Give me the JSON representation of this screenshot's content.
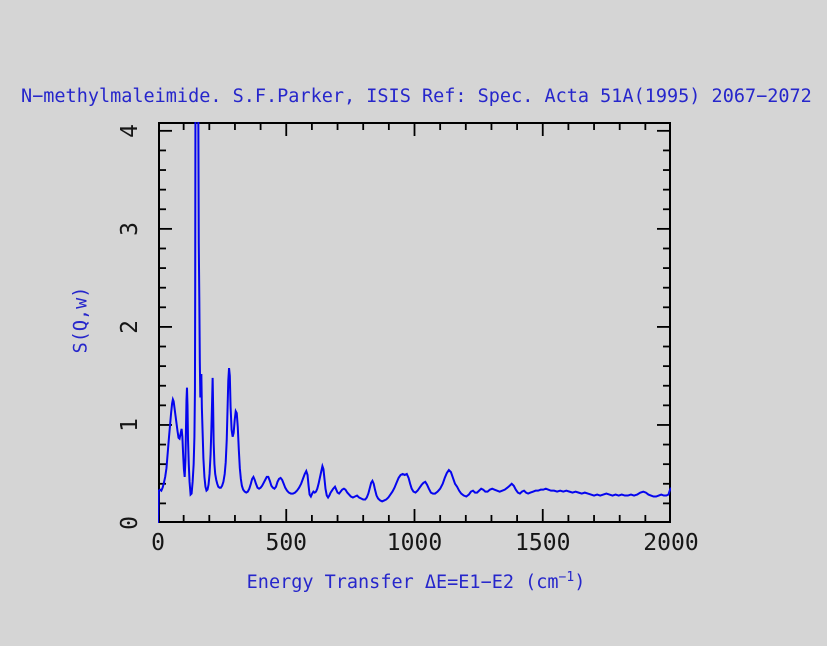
{
  "chart_data": {
    "type": "line",
    "title": "N−methylmaleimide. S.F.Parker, ISIS Ref: Spec. Acta 51A(1995) 2067−2072",
    "xlabel": "Energy Transfer ΔE=E1−E2 (cm⁻¹)",
    "xlabel_pre": "Energy Transfer ΔE=E1−E2 (cm",
    "xlabel_sup": "−1",
    "xlabel_post": ")",
    "ylabel": "S(Q,w)",
    "xlim": [
      0,
      2000
    ],
    "ylim": [
      0,
      4.09
    ],
    "grid": false,
    "legend": "none",
    "x_ticks": {
      "major": [
        0,
        500,
        1000,
        1500,
        2000
      ],
      "labels": [
        "0",
        "500",
        "1000",
        "1500",
        "2000"
      ],
      "minor_step": 100
    },
    "y_ticks": {
      "major": [
        0,
        1,
        2,
        3,
        4
      ],
      "labels": [
        "0",
        "1",
        "2",
        "3",
        "4"
      ],
      "minor_step": 0.2
    },
    "colors": {
      "background": "#d5d5d5",
      "axis": "#000000",
      "curve": "#0505ee",
      "label_text": "#2626cb",
      "tick_text": "#161616"
    },
    "series": [
      {
        "name": "S(Q,w)",
        "points": [
          [
            0,
            0
          ],
          [
            3,
            0.33
          ],
          [
            8,
            0.34
          ],
          [
            13,
            0.33
          ],
          [
            18,
            0.36
          ],
          [
            23,
            0.41
          ],
          [
            28,
            0.47
          ],
          [
            33,
            0.56
          ],
          [
            38,
            0.72
          ],
          [
            43,
            0.88
          ],
          [
            47,
            1.0
          ],
          [
            51,
            1.12
          ],
          [
            55,
            1.22
          ],
          [
            58,
            1.26
          ],
          [
            61,
            1.24
          ],
          [
            64,
            1.18
          ],
          [
            68,
            1.1
          ],
          [
            72,
            1.02
          ],
          [
            76,
            0.94
          ],
          [
            80,
            0.87
          ],
          [
            84,
            0.86
          ],
          [
            88,
            0.91
          ],
          [
            92,
            0.96
          ],
          [
            95,
            0.88
          ],
          [
            98,
            0.7
          ],
          [
            101,
            0.55
          ],
          [
            104,
            0.47
          ],
          [
            107,
            0.65
          ],
          [
            109,
            0.95
          ],
          [
            111,
            1.25
          ],
          [
            113,
            1.38
          ],
          [
            115,
            1.2
          ],
          [
            117,
            0.85
          ],
          [
            120,
            0.6
          ],
          [
            123,
            0.42
          ],
          [
            127,
            0.29
          ],
          [
            131,
            0.3
          ],
          [
            135,
            0.42
          ],
          [
            139,
            0.6
          ],
          [
            142,
            0.88
          ],
          [
            144,
            1.35
          ],
          [
            145,
            2.4
          ],
          [
            146,
            4.3
          ],
          [
            157,
            4.3
          ],
          [
            159,
            2.85
          ],
          [
            161,
            2.3
          ],
          [
            163,
            1.65
          ],
          [
            165,
            1.28
          ],
          [
            167,
            1.4
          ],
          [
            169,
            1.52
          ],
          [
            171,
            1.18
          ],
          [
            174,
            0.92
          ],
          [
            177,
            0.66
          ],
          [
            181,
            0.47
          ],
          [
            185,
            0.37
          ],
          [
            189,
            0.33
          ],
          [
            193,
            0.34
          ],
          [
            197,
            0.39
          ],
          [
            201,
            0.5
          ],
          [
            205,
            0.7
          ],
          [
            208,
            0.95
          ],
          [
            211,
            1.25
          ],
          [
            213,
            1.48
          ],
          [
            215,
            1.18
          ],
          [
            217,
            0.82
          ],
          [
            220,
            0.6
          ],
          [
            223,
            0.5
          ],
          [
            227,
            0.44
          ],
          [
            231,
            0.4
          ],
          [
            235,
            0.37
          ],
          [
            240,
            0.36
          ],
          [
            245,
            0.36
          ],
          [
            250,
            0.38
          ],
          [
            255,
            0.42
          ],
          [
            260,
            0.5
          ],
          [
            264,
            0.62
          ],
          [
            268,
            0.85
          ],
          [
            271,
            1.15
          ],
          [
            274,
            1.45
          ],
          [
            277,
            1.58
          ],
          [
            280,
            1.5
          ],
          [
            283,
            1.18
          ],
          [
            287,
            0.95
          ],
          [
            291,
            0.88
          ],
          [
            295,
            0.92
          ],
          [
            299,
            1.05
          ],
          [
            303,
            1.14
          ],
          [
            307,
            1.12
          ],
          [
            311,
            0.98
          ],
          [
            315,
            0.75
          ],
          [
            319,
            0.56
          ],
          [
            323,
            0.45
          ],
          [
            327,
            0.38
          ],
          [
            332,
            0.34
          ],
          [
            338,
            0.32
          ],
          [
            344,
            0.31
          ],
          [
            350,
            0.32
          ],
          [
            356,
            0.35
          ],
          [
            362,
            0.4
          ],
          [
            367,
            0.45
          ],
          [
            372,
            0.47
          ],
          [
            377,
            0.44
          ],
          [
            382,
            0.4
          ],
          [
            388,
            0.36
          ],
          [
            394,
            0.35
          ],
          [
            400,
            0.36
          ],
          [
            406,
            0.38
          ],
          [
            412,
            0.41
          ],
          [
            418,
            0.44
          ],
          [
            424,
            0.47
          ],
          [
            430,
            0.47
          ],
          [
            436,
            0.43
          ],
          [
            442,
            0.38
          ],
          [
            448,
            0.36
          ],
          [
            454,
            0.35
          ],
          [
            460,
            0.37
          ],
          [
            466,
            0.42
          ],
          [
            472,
            0.45
          ],
          [
            478,
            0.46
          ],
          [
            484,
            0.44
          ],
          [
            490,
            0.4
          ],
          [
            496,
            0.36
          ],
          [
            503,
            0.33
          ],
          [
            510,
            0.31
          ],
          [
            518,
            0.3
          ],
          [
            526,
            0.3
          ],
          [
            534,
            0.31
          ],
          [
            542,
            0.33
          ],
          [
            550,
            0.36
          ],
          [
            558,
            0.4
          ],
          [
            565,
            0.45
          ],
          [
            572,
            0.5
          ],
          [
            578,
            0.53
          ],
          [
            583,
            0.49
          ],
          [
            587,
            0.38
          ],
          [
            591,
            0.29
          ],
          [
            596,
            0.27
          ],
          [
            601,
            0.3
          ],
          [
            606,
            0.32
          ],
          [
            611,
            0.31
          ],
          [
            616,
            0.32
          ],
          [
            621,
            0.35
          ],
          [
            626,
            0.4
          ],
          [
            631,
            0.46
          ],
          [
            636,
            0.52
          ],
          [
            641,
            0.58
          ],
          [
            645,
            0.55
          ],
          [
            649,
            0.45
          ],
          [
            653,
            0.35
          ],
          [
            658,
            0.28
          ],
          [
            663,
            0.26
          ],
          [
            668,
            0.28
          ],
          [
            673,
            0.31
          ],
          [
            678,
            0.33
          ],
          [
            683,
            0.35
          ],
          [
            690,
            0.37
          ],
          [
            695,
            0.34
          ],
          [
            700,
            0.31
          ],
          [
            706,
            0.3
          ],
          [
            712,
            0.32
          ],
          [
            718,
            0.34
          ],
          [
            725,
            0.35
          ],
          [
            731,
            0.34
          ],
          [
            738,
            0.31
          ],
          [
            745,
            0.29
          ],
          [
            752,
            0.27
          ],
          [
            760,
            0.26
          ],
          [
            768,
            0.27
          ],
          [
            776,
            0.28
          ],
          [
            784,
            0.26
          ],
          [
            792,
            0.25
          ],
          [
            800,
            0.24
          ],
          [
            808,
            0.24
          ],
          [
            814,
            0.26
          ],
          [
            820,
            0.3
          ],
          [
            826,
            0.36
          ],
          [
            831,
            0.41
          ],
          [
            836,
            0.43
          ],
          [
            841,
            0.4
          ],
          [
            846,
            0.34
          ],
          [
            852,
            0.28
          ],
          [
            858,
            0.25
          ],
          [
            866,
            0.23
          ],
          [
            874,
            0.22
          ],
          [
            882,
            0.23
          ],
          [
            890,
            0.24
          ],
          [
            898,
            0.26
          ],
          [
            906,
            0.29
          ],
          [
            914,
            0.32
          ],
          [
            922,
            0.36
          ],
          [
            930,
            0.41
          ],
          [
            938,
            0.46
          ],
          [
            946,
            0.49
          ],
          [
            954,
            0.5
          ],
          [
            962,
            0.49
          ],
          [
            970,
            0.5
          ],
          [
            977,
            0.46
          ],
          [
            983,
            0.4
          ],
          [
            989,
            0.35
          ],
          [
            996,
            0.32
          ],
          [
            1004,
            0.31
          ],
          [
            1012,
            0.33
          ],
          [
            1020,
            0.36
          ],
          [
            1028,
            0.39
          ],
          [
            1035,
            0.41
          ],
          [
            1042,
            0.42
          ],
          [
            1049,
            0.39
          ],
          [
            1056,
            0.35
          ],
          [
            1064,
            0.31
          ],
          [
            1072,
            0.3
          ],
          [
            1080,
            0.3
          ],
          [
            1090,
            0.32
          ],
          [
            1100,
            0.35
          ],
          [
            1110,
            0.4
          ],
          [
            1118,
            0.46
          ],
          [
            1126,
            0.51
          ],
          [
            1134,
            0.54
          ],
          [
            1142,
            0.52
          ],
          [
            1150,
            0.46
          ],
          [
            1158,
            0.4
          ],
          [
            1166,
            0.37
          ],
          [
            1174,
            0.33
          ],
          [
            1182,
            0.3
          ],
          [
            1192,
            0.28
          ],
          [
            1202,
            0.27
          ],
          [
            1212,
            0.29
          ],
          [
            1220,
            0.32
          ],
          [
            1228,
            0.33
          ],
          [
            1236,
            0.31
          ],
          [
            1244,
            0.31
          ],
          [
            1252,
            0.33
          ],
          [
            1260,
            0.35
          ],
          [
            1268,
            0.34
          ],
          [
            1276,
            0.32
          ],
          [
            1285,
            0.32
          ],
          [
            1294,
            0.34
          ],
          [
            1303,
            0.35
          ],
          [
            1312,
            0.34
          ],
          [
            1322,
            0.33
          ],
          [
            1332,
            0.32
          ],
          [
            1342,
            0.33
          ],
          [
            1352,
            0.34
          ],
          [
            1362,
            0.36
          ],
          [
            1371,
            0.38
          ],
          [
            1379,
            0.4
          ],
          [
            1387,
            0.38
          ],
          [
            1395,
            0.34
          ],
          [
            1403,
            0.31
          ],
          [
            1411,
            0.3
          ],
          [
            1419,
            0.32
          ],
          [
            1427,
            0.33
          ],
          [
            1435,
            0.31
          ],
          [
            1443,
            0.3
          ],
          [
            1452,
            0.31
          ],
          [
            1462,
            0.32
          ],
          [
            1472,
            0.33
          ],
          [
            1482,
            0.33
          ],
          [
            1492,
            0.34
          ],
          [
            1502,
            0.34
          ],
          [
            1512,
            0.35
          ],
          [
            1522,
            0.34
          ],
          [
            1532,
            0.33
          ],
          [
            1544,
            0.33
          ],
          [
            1556,
            0.32
          ],
          [
            1568,
            0.33
          ],
          [
            1580,
            0.32
          ],
          [
            1592,
            0.33
          ],
          [
            1604,
            0.32
          ],
          [
            1616,
            0.31
          ],
          [
            1628,
            0.32
          ],
          [
            1640,
            0.31
          ],
          [
            1652,
            0.3
          ],
          [
            1664,
            0.31
          ],
          [
            1676,
            0.3
          ],
          [
            1688,
            0.29
          ],
          [
            1700,
            0.28
          ],
          [
            1712,
            0.29
          ],
          [
            1724,
            0.28
          ],
          [
            1736,
            0.29
          ],
          [
            1748,
            0.3
          ],
          [
            1760,
            0.29
          ],
          [
            1772,
            0.28
          ],
          [
            1784,
            0.29
          ],
          [
            1796,
            0.28
          ],
          [
            1808,
            0.29
          ],
          [
            1820,
            0.28
          ],
          [
            1832,
            0.28
          ],
          [
            1844,
            0.29
          ],
          [
            1856,
            0.28
          ],
          [
            1868,
            0.29
          ],
          [
            1880,
            0.31
          ],
          [
            1892,
            0.32
          ],
          [
            1902,
            0.31
          ],
          [
            1912,
            0.29
          ],
          [
            1922,
            0.28
          ],
          [
            1932,
            0.27
          ],
          [
            1942,
            0.27
          ],
          [
            1952,
            0.28
          ],
          [
            1962,
            0.29
          ],
          [
            1972,
            0.28
          ],
          [
            1982,
            0.28
          ],
          [
            1990,
            0.29
          ],
          [
            1995,
            0.33
          ],
          [
            2000,
            0.36
          ]
        ]
      }
    ]
  }
}
